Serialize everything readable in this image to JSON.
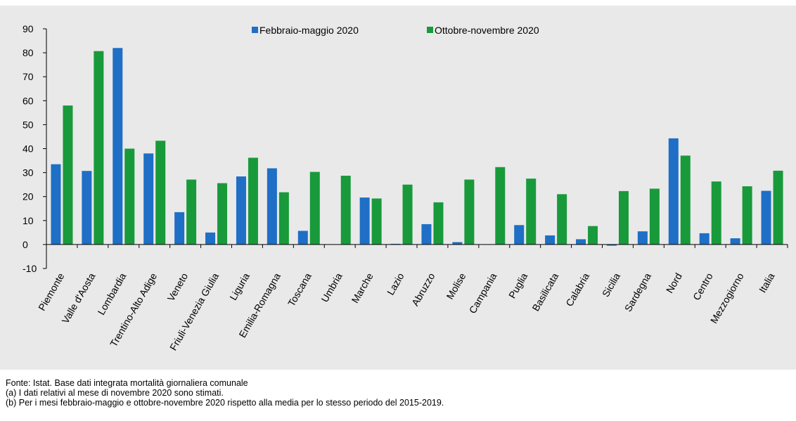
{
  "chart_data": {
    "type": "bar",
    "categories": [
      "Piemonte",
      "Valle d'Aosta",
      "Lombardia",
      "Trentino-Alto Adige",
      "Veneto",
      "Friuli-Venezia Giulia",
      "Liguria",
      "Emilia-Romagna",
      "Toscana",
      "Umbria",
      "Marche",
      "Lazio",
      "Abruzzo",
      "Molise",
      "Campania",
      "Puglia",
      "Basilicata",
      "Calabria",
      "Sicilia",
      "Sardegna",
      "Nord",
      "Centro",
      "Mezzogiorno",
      "Italia"
    ],
    "series": [
      {
        "name": "Febbraio-maggio 2020",
        "color": "#1e6fc5",
        "values": [
          33.5,
          30.7,
          82,
          38,
          13.5,
          5,
          28.4,
          31.8,
          5.7,
          0,
          19.6,
          0.3,
          8.5,
          1,
          0,
          8.1,
          3.8,
          2.2,
          -0.5,
          5.5,
          44.3,
          4.7,
          2.6,
          22.4
        ]
      },
      {
        "name": "Ottobre-novembre 2020",
        "color": "#189a3b",
        "values": [
          58,
          80.7,
          40,
          43.3,
          27.1,
          25.6,
          36.2,
          21.8,
          30.3,
          28.7,
          19.2,
          25,
          17.6,
          27.1,
          32.3,
          27.5,
          21,
          7.7,
          22.3,
          23.3,
          37.1,
          26.3,
          24.3,
          30.8
        ]
      }
    ],
    "ylim": [
      -10,
      90
    ],
    "yticks": [
      -10,
      0,
      10,
      20,
      30,
      40,
      50,
      60,
      70,
      80,
      90
    ],
    "legend": "top",
    "notes": [
      "Fonte: Istat. Base dati integrata mortalità giornaliera comunale",
      "(a) I dati relativi al mese di novembre 2020 sono stimati.",
      "(b) Per i mesi febbraio-maggio e ottobre-novembre 2020 rispetto alla media per lo stesso periodo del 2015-2019."
    ]
  }
}
